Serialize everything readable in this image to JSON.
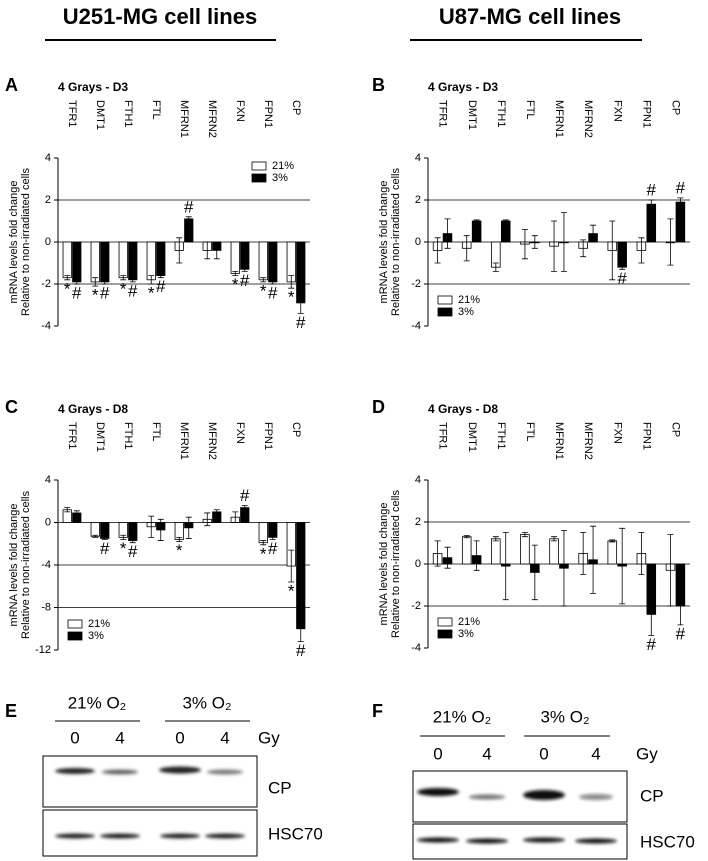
{
  "headers": [
    "U251-MG cell lines",
    "U87-MG cell lines"
  ],
  "chart_data": [
    {
      "type": "bar",
      "panel": "A",
      "title": "4 Grays - D3",
      "ylabel": [
        "mRNA levels fold change",
        "Relative to non-irradiated cells"
      ],
      "categories": [
        "TFR1",
        "DMT1",
        "FTH1",
        "FTL",
        "MFRN1",
        "MFRN2",
        "FXN",
        "FPN1",
        "CP"
      ],
      "ylim": [
        -4,
        4
      ],
      "yticks": [
        4,
        2,
        0,
        -2,
        -4
      ],
      "grid": true,
      "legend": "upper right",
      "series": [
        {
          "name": "21%",
          "color": "#ffffff",
          "values": [
            -1.7,
            -1.9,
            -1.7,
            -1.8,
            -0.4,
            -0.4,
            -1.5,
            -1.8,
            -1.9
          ],
          "errors": [
            0.1,
            0.2,
            0.1,
            0.2,
            0.6,
            0.4,
            0.1,
            0.1,
            0.3
          ],
          "significance": [
            "*",
            "*",
            "*",
            "*",
            null,
            null,
            "*",
            "*",
            "*"
          ]
        },
        {
          "name": "3%",
          "color": "#000000",
          "values": [
            -1.9,
            -1.9,
            -1.8,
            -1.6,
            1.1,
            -0.4,
            -1.3,
            -1.9,
            -2.9
          ],
          "errors": [
            0.1,
            0.1,
            0.1,
            0.1,
            0.1,
            0.4,
            0.1,
            0.1,
            0.5
          ],
          "significance": [
            "#",
            "#",
            "#",
            "#",
            "#",
            null,
            "#",
            "#",
            "#"
          ]
        }
      ]
    },
    {
      "type": "bar",
      "panel": "B",
      "title": "4 Grays - D3",
      "ylabel": [
        "mRNA levels fold change",
        "Relative to non-irradiated cells"
      ],
      "categories": [
        "TFR1",
        "DMT1",
        "FTH1",
        "FTL",
        "MFRN1",
        "MFRN2",
        "FXN",
        "FPN1",
        "CP"
      ],
      "ylim": [
        -4,
        4
      ],
      "yticks": [
        4,
        2,
        0,
        -2,
        -4
      ],
      "grid": true,
      "legend": "lower left",
      "series": [
        {
          "name": "21%",
          "color": "#ffffff",
          "values": [
            -0.4,
            -0.3,
            -1.2,
            -0.1,
            -0.2,
            -0.3,
            -0.4,
            -0.4,
            0
          ],
          "errors": [
            0.6,
            0.6,
            0.2,
            0.7,
            1.2,
            0.4,
            1.4,
            0.6,
            1.1
          ],
          "significance": [
            null,
            null,
            null,
            null,
            null,
            null,
            null,
            null,
            null
          ]
        },
        {
          "name": "3%",
          "color": "#000000",
          "values": [
            0.4,
            1.0,
            1.0,
            0.0,
            0.0,
            0.4,
            -1.2,
            1.8,
            1.9
          ],
          "errors": [
            0.7,
            0.05,
            0.05,
            0.3,
            1.4,
            0.4,
            0.1,
            0.2,
            0.2
          ],
          "significance": [
            null,
            null,
            null,
            null,
            null,
            null,
            "#",
            "#",
            "#"
          ]
        }
      ]
    },
    {
      "type": "bar",
      "panel": "C",
      "title": "4 Grays - D8",
      "ylabel": [
        "mRNA levels fold change",
        "Relative to non-irradiated cells"
      ],
      "categories": [
        "TFR1",
        "DMT1",
        "FTH1",
        "FTL",
        "MFRN1",
        "MFRN2",
        "FXN",
        "FPN1",
        "CP"
      ],
      "ylim": [
        -12,
        4
      ],
      "yticks": [
        4,
        0,
        -4,
        -8,
        -12
      ],
      "grid": true,
      "legend": "lower left",
      "series": [
        {
          "name": "21%",
          "color": "#ffffff",
          "values": [
            1.2,
            -1.3,
            -1.4,
            -0.4,
            -1.6,
            0.3,
            0.5,
            -1.9,
            -4.1
          ],
          "errors": [
            0.2,
            0.1,
            0.2,
            1.0,
            0.2,
            0.6,
            0.5,
            0.2,
            1.5
          ],
          "significance": [
            null,
            null,
            "*",
            null,
            "*",
            null,
            null,
            "*",
            "*"
          ]
        },
        {
          "name": "3%",
          "color": "#000000",
          "values": [
            0.9,
            -1.5,
            -1.7,
            -0.7,
            -0.5,
            1.0,
            1.4,
            -1.4,
            -10
          ],
          "errors": [
            0.2,
            0.1,
            0.2,
            1.0,
            1.0,
            0.2,
            0.2,
            0.2,
            1.2
          ],
          "significance": [
            null,
            "#",
            "#",
            null,
            null,
            null,
            "#",
            "#",
            "#"
          ]
        }
      ]
    },
    {
      "type": "bar",
      "panel": "D",
      "title": "4 Grays - D8",
      "ylabel": [
        "mRNA levels fold change",
        "Relative to non-irradiated cells"
      ],
      "categories": [
        "TFR1",
        "DMT1",
        "FTH1",
        "FTL",
        "MFRN1",
        "MFRN2",
        "FXN",
        "FPN1",
        "CP"
      ],
      "ylim": [
        -4,
        4
      ],
      "yticks": [
        4,
        2,
        0,
        -2,
        -4
      ],
      "grid": true,
      "legend": "lower left",
      "series": [
        {
          "name": "21%",
          "color": "#ffffff",
          "values": [
            0.5,
            1.3,
            1.2,
            1.4,
            1.2,
            0.5,
            1.1,
            0.5,
            -0.3
          ],
          "errors": [
            0.6,
            0.05,
            0.1,
            0.1,
            0.1,
            1.0,
            0.05,
            1.0,
            1.7
          ],
          "significance": [
            null,
            null,
            null,
            null,
            null,
            null,
            null,
            null,
            null
          ]
        },
        {
          "name": "3%",
          "color": "#000000",
          "values": [
            0.3,
            0.4,
            -0.1,
            -0.4,
            -0.2,
            0.2,
            -0.1,
            -2.4,
            -2.0
          ],
          "errors": [
            0.5,
            0.7,
            1.6,
            1.3,
            1.8,
            1.6,
            1.8,
            1.0,
            0.9
          ],
          "significance": [
            null,
            null,
            null,
            null,
            null,
            null,
            null,
            "#",
            "#"
          ]
        }
      ]
    }
  ],
  "blots": [
    {
      "panel": "E",
      "conditions": [
        "21% O₂",
        "3% O₂"
      ],
      "doses": [
        "0",
        "4",
        "0",
        "4"
      ],
      "unit": "Gy",
      "proteins": [
        "CP",
        "HSC70"
      ]
    },
    {
      "panel": "F",
      "conditions": [
        "21% O₂",
        "3% O₂"
      ],
      "doses": [
        "0",
        "4",
        "0",
        "4"
      ],
      "unit": "Gy",
      "proteins": [
        "CP",
        "HSC70"
      ]
    }
  ]
}
